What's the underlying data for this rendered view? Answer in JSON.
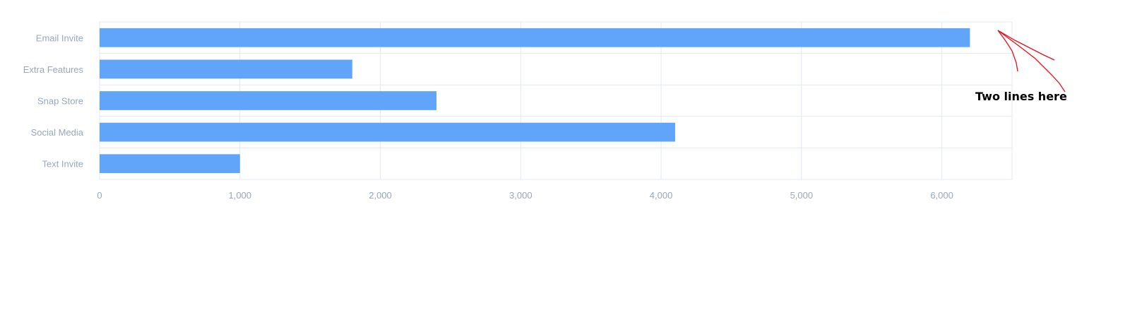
{
  "chart_data": {
    "type": "bar",
    "orientation": "horizontal",
    "categories": [
      "Email Invite",
      "Extra Features",
      "Snap Store",
      "Social Media",
      "Text Invite"
    ],
    "values": [
      6200,
      1800,
      2400,
      4100,
      1000
    ],
    "xlim": [
      0,
      6500
    ],
    "x_ticks": [
      0,
      1000,
      2000,
      3000,
      4000,
      5000,
      6000
    ],
    "x_tick_labels": [
      "0",
      "1,000",
      "2,000",
      "3,000",
      "4,000",
      "5,000",
      "6,000"
    ],
    "title": "",
    "xlabel": "",
    "ylabel": "",
    "grid": true,
    "colors": {
      "bar": "#60a5fa",
      "grid": "#e3e9f0",
      "tick_text": "#9aa6bd",
      "annotation": "#e8101a"
    }
  },
  "annotation": {
    "text": "Two lines here"
  }
}
